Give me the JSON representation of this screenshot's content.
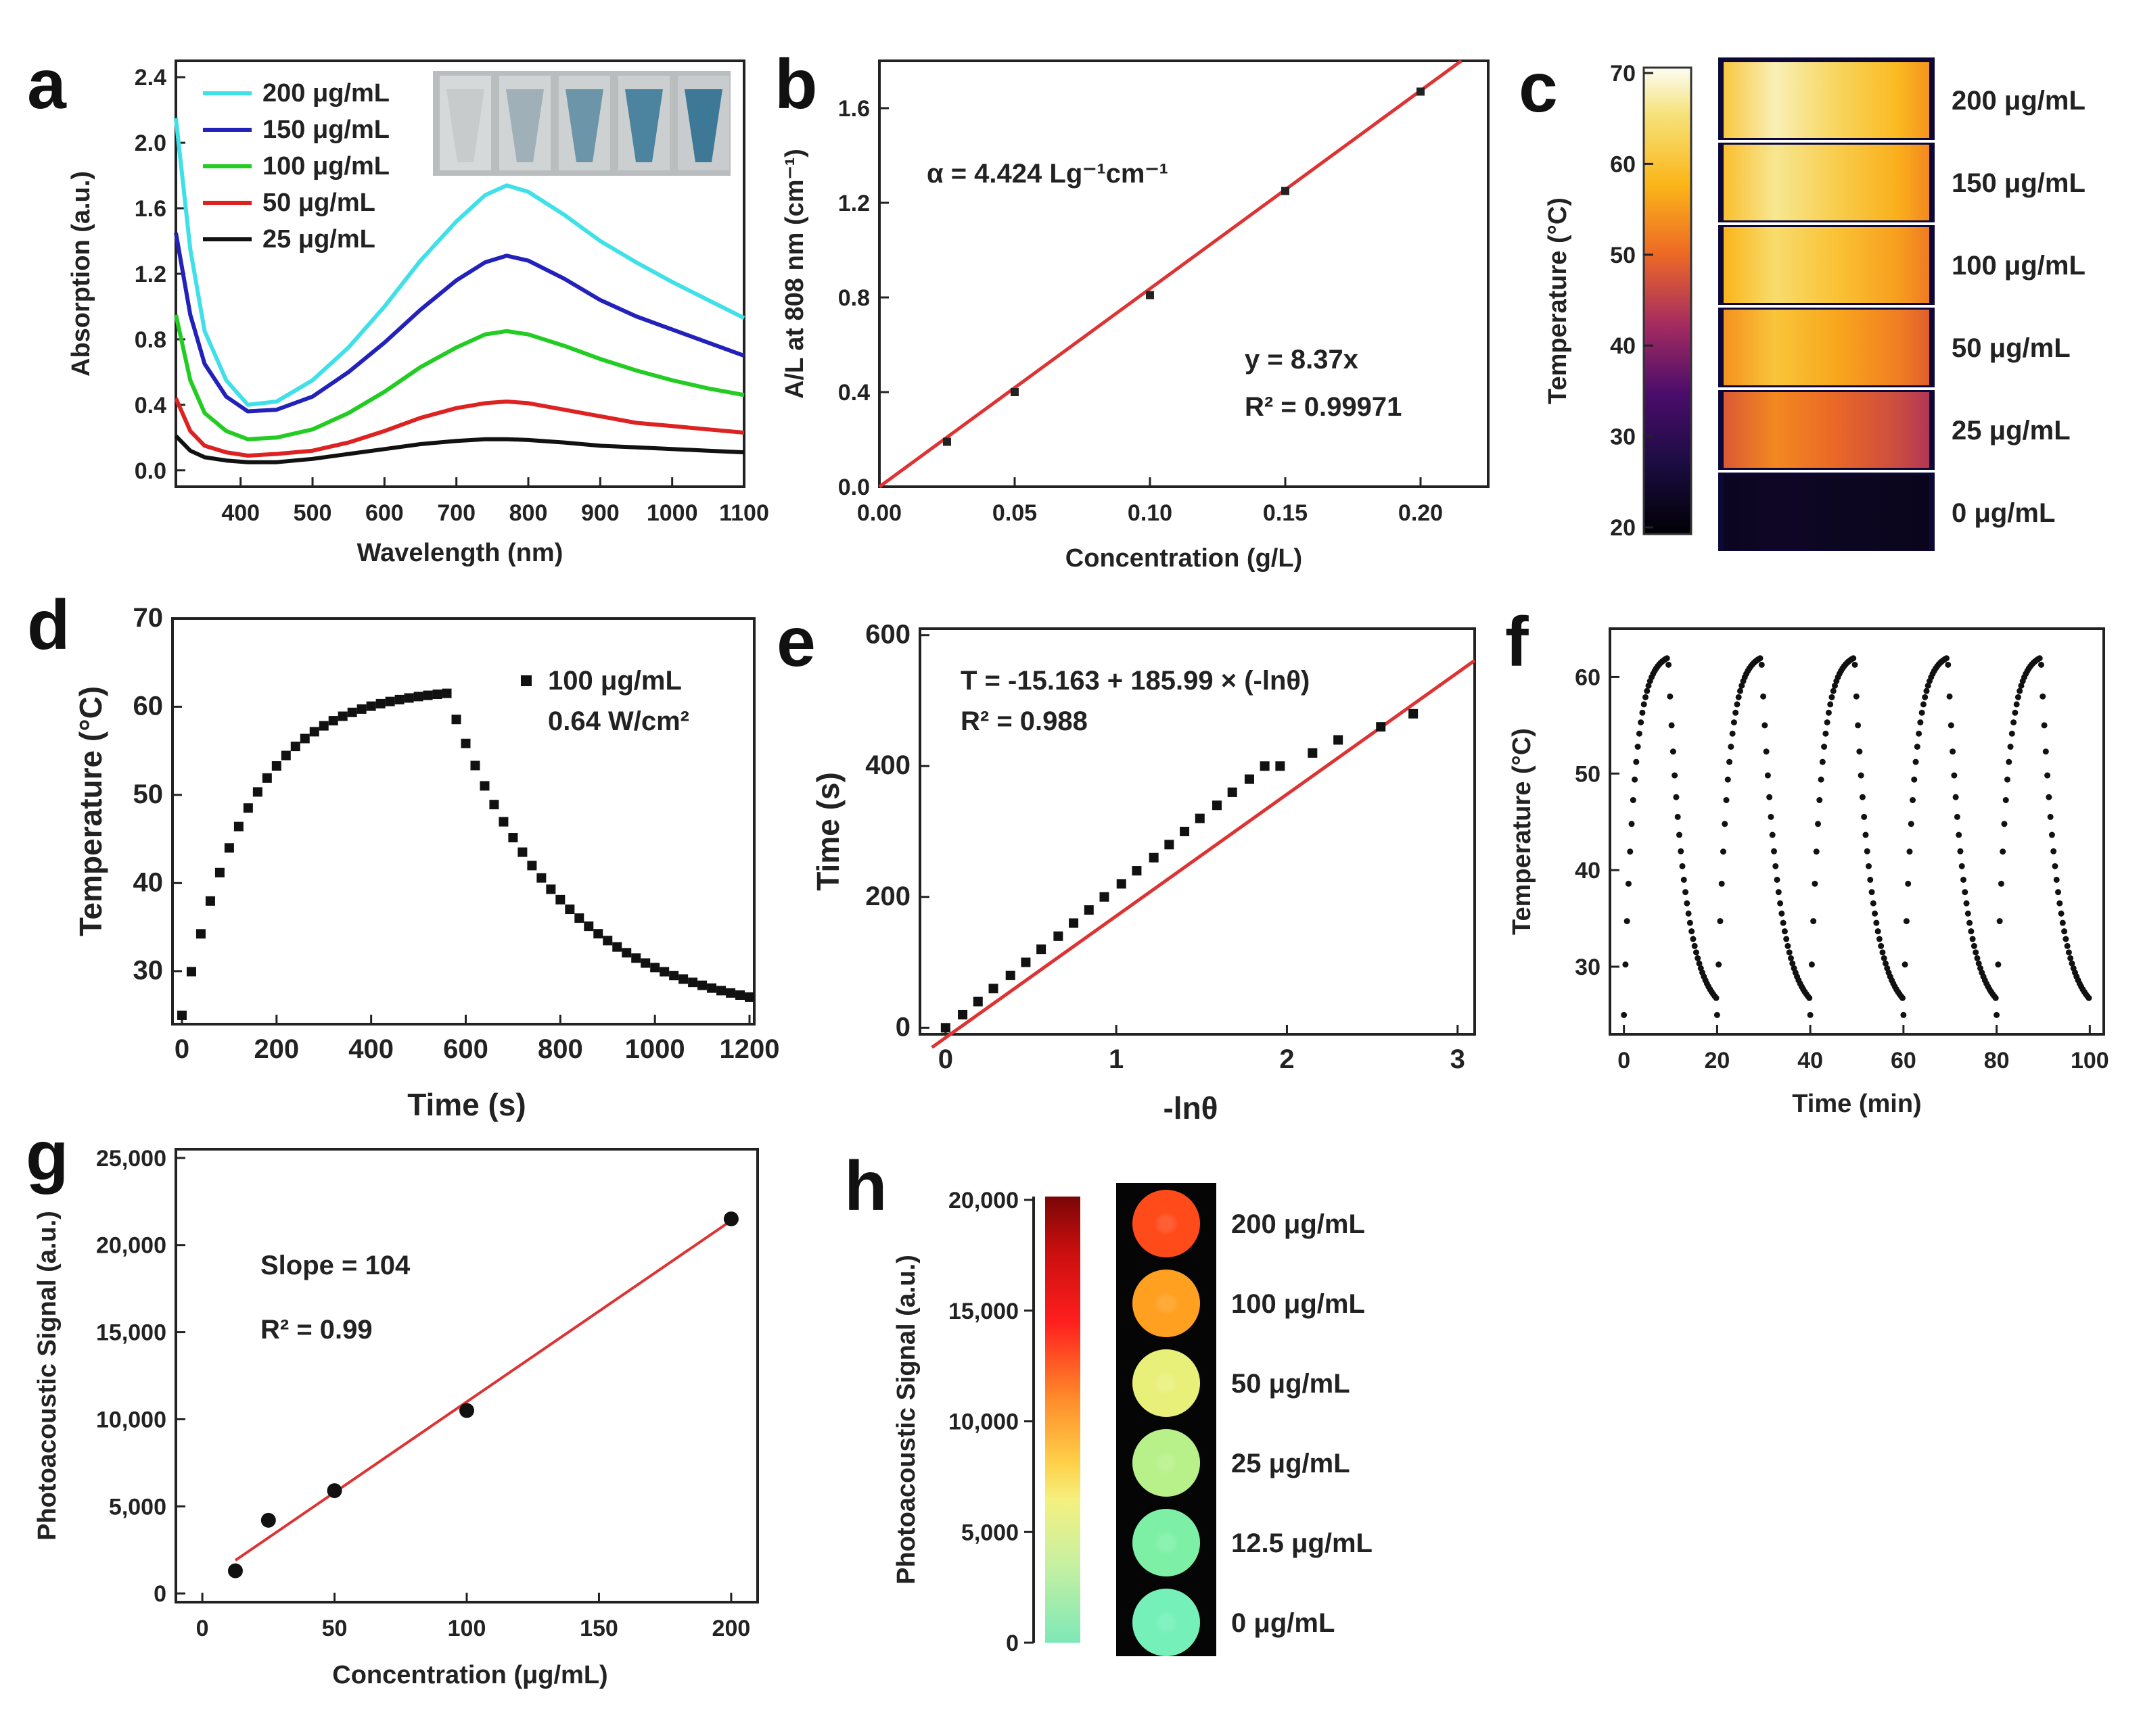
{
  "chart_data": [
    {
      "id": "a",
      "panel_label": "a",
      "type": "line",
      "xlabel": "Wavelength (nm)",
      "ylabel": "Absorption (a.u.)",
      "xlim": [
        310,
        1100
      ],
      "ylim": [
        -0.1,
        2.5
      ],
      "xticks": [
        400,
        500,
        600,
        700,
        800,
        900,
        1000,
        1100
      ],
      "yticks": [
        0.0,
        0.4,
        0.8,
        1.2,
        1.6,
        2.0,
        2.4
      ],
      "series": [
        {
          "name": "200 μg/mL",
          "color": "#40e0e8",
          "x": [
            310,
            330,
            350,
            380,
            410,
            450,
            500,
            550,
            600,
            650,
            700,
            740,
            770,
            800,
            850,
            900,
            950,
            1000,
            1050,
            1100
          ],
          "y": [
            2.15,
            1.35,
            0.85,
            0.55,
            0.4,
            0.42,
            0.55,
            0.75,
            1.0,
            1.28,
            1.52,
            1.68,
            1.74,
            1.7,
            1.56,
            1.4,
            1.27,
            1.15,
            1.04,
            0.93
          ]
        },
        {
          "name": "150 μg/mL",
          "color": "#2222bb",
          "x": [
            310,
            330,
            350,
            380,
            410,
            450,
            500,
            550,
            600,
            650,
            700,
            740,
            770,
            800,
            850,
            900,
            950,
            1000,
            1050,
            1100
          ],
          "y": [
            1.45,
            0.95,
            0.65,
            0.45,
            0.36,
            0.37,
            0.45,
            0.6,
            0.78,
            0.98,
            1.16,
            1.27,
            1.31,
            1.28,
            1.17,
            1.04,
            0.94,
            0.86,
            0.78,
            0.7
          ]
        },
        {
          "name": "100 μg/mL",
          "color": "#22cc22",
          "x": [
            310,
            330,
            350,
            380,
            410,
            450,
            500,
            550,
            600,
            650,
            700,
            740,
            770,
            800,
            850,
            900,
            950,
            1000,
            1050,
            1100
          ],
          "y": [
            0.95,
            0.55,
            0.35,
            0.24,
            0.19,
            0.2,
            0.25,
            0.35,
            0.48,
            0.63,
            0.75,
            0.83,
            0.85,
            0.83,
            0.76,
            0.68,
            0.61,
            0.55,
            0.5,
            0.46
          ]
        },
        {
          "name": "50 μg/mL",
          "color": "#dd2222",
          "x": [
            310,
            330,
            350,
            380,
            410,
            450,
            500,
            550,
            600,
            650,
            700,
            740,
            770,
            800,
            850,
            900,
            950,
            1000,
            1050,
            1100
          ],
          "y": [
            0.44,
            0.24,
            0.15,
            0.11,
            0.09,
            0.1,
            0.12,
            0.17,
            0.24,
            0.32,
            0.38,
            0.41,
            0.42,
            0.41,
            0.37,
            0.33,
            0.29,
            0.27,
            0.25,
            0.23
          ]
        },
        {
          "name": "25 μg/mL",
          "color": "#111111",
          "x": [
            310,
            330,
            350,
            380,
            410,
            450,
            500,
            550,
            600,
            650,
            700,
            740,
            770,
            800,
            850,
            900,
            950,
            1000,
            1050,
            1100
          ],
          "y": [
            0.21,
            0.12,
            0.08,
            0.06,
            0.05,
            0.05,
            0.07,
            0.1,
            0.13,
            0.16,
            0.18,
            0.19,
            0.19,
            0.185,
            0.17,
            0.15,
            0.14,
            0.13,
            0.12,
            0.11
          ]
        }
      ]
    },
    {
      "id": "b",
      "panel_label": "b",
      "type": "scatter",
      "xlabel": "Concentration (g/L)",
      "ylabel": "A/L at 808 nm (cm⁻¹)",
      "xlim": [
        0.0,
        0.225
      ],
      "ylim": [
        0.0,
        1.8
      ],
      "xticks": [
        0.0,
        0.05,
        0.1,
        0.15,
        0.2
      ],
      "yticks": [
        0.0,
        0.4,
        0.8,
        1.2,
        1.6
      ],
      "x": [
        0.025,
        0.05,
        0.1,
        0.15,
        0.2
      ],
      "y": [
        0.19,
        0.4,
        0.81,
        1.25,
        1.67
      ],
      "fit_slope": 8.37,
      "fit_color": "#dd3333",
      "annotations": {
        "alpha": "α = 4.424 Lg⁻¹cm⁻¹",
        "equation": "y = 8.37x",
        "r2": "R² = 0.99971"
      }
    },
    {
      "id": "c",
      "panel_label": "c",
      "type": "heatmap",
      "colorbar_label": "Temperature (°C)",
      "colorbar_range": [
        20,
        70
      ],
      "colorbar_ticks": [
        20,
        30,
        40,
        50,
        60,
        70
      ],
      "rows": [
        {
          "label": "200 μg/mL",
          "peak": 0.95
        },
        {
          "label": "150 μg/mL",
          "peak": 0.92
        },
        {
          "label": "100 μg/mL",
          "peak": 0.88
        },
        {
          "label": "50 μg/mL",
          "peak": 0.8
        },
        {
          "label": "25 μg/mL",
          "peak": 0.66
        },
        {
          "label": "0 μg/mL",
          "peak": 0.08
        }
      ]
    },
    {
      "id": "d",
      "panel_label": "d",
      "type": "scatter",
      "xlabel": "Time (s)",
      "ylabel": "Temperature (°C)",
      "xlim": [
        -20,
        1210
      ],
      "ylim": [
        24,
        70
      ],
      "xticks": [
        0,
        200,
        400,
        600,
        800,
        1000,
        1200
      ],
      "yticks": [
        30,
        40,
        50,
        60,
        70
      ],
      "legend": {
        "label": "100 μg/mL",
        "power": "0.64 W/cm²"
      },
      "heating": {
        "t_end": 560,
        "T0": 25,
        "Tmax": 62.2,
        "tau": 140
      },
      "cooling": {
        "t_end": 1200,
        "Tinf": 24.5,
        "tau": 240
      },
      "sample_step": 20
    },
    {
      "id": "e",
      "panel_label": "e",
      "type": "scatter",
      "xlabel": "-lnθ",
      "ylabel": "Time (s)",
      "xlim": [
        -0.15,
        3.1
      ],
      "ylim": [
        -10,
        610
      ],
      "xticks": [
        0,
        1,
        2,
        3
      ],
      "yticks": [
        0,
        200,
        400,
        600
      ],
      "x": [
        0.0,
        0.1,
        0.19,
        0.28,
        0.38,
        0.47,
        0.56,
        0.66,
        0.75,
        0.84,
        0.93,
        1.03,
        1.12,
        1.22,
        1.31,
        1.4,
        1.49,
        1.59,
        1.68,
        1.78,
        1.87,
        1.96,
        2.15,
        2.3,
        2.55,
        2.74
      ],
      "y": [
        0,
        20,
        40,
        60,
        80,
        100,
        120,
        140,
        160,
        180,
        200,
        220,
        240,
        260,
        280,
        300,
        320,
        340,
        360,
        380,
        400,
        400,
        420,
        440,
        460,
        480
      ],
      "fit": {
        "intercept": -15.163,
        "slope": 185.99,
        "color": "#dd3333"
      },
      "annotations": {
        "equation": "T = -15.163 + 185.99 × (-lnθ)",
        "r2": "R² = 0.988"
      }
    },
    {
      "id": "f",
      "panel_label": "f",
      "type": "scatter",
      "xlabel": "Time (min)",
      "ylabel": "Temperature (°C)",
      "xlim": [
        -3,
        103
      ],
      "ylim": [
        23,
        65
      ],
      "xticks": [
        0,
        20,
        40,
        60,
        80,
        100
      ],
      "yticks": [
        30,
        40,
        50,
        60
      ],
      "cycles": 5,
      "cycle_period_min": 20,
      "heat_min": 9.5,
      "T0": 25,
      "Tmax": 62.5,
      "T_end_cycle": 25.8,
      "sample_step_min": 0.33
    },
    {
      "id": "g",
      "panel_label": "g",
      "type": "scatter",
      "xlabel": "Concentration (μg/mL)",
      "ylabel": "Photoacoustic Signal (a.u.)",
      "xlim": [
        -10,
        210
      ],
      "ylim": [
        -500,
        25500
      ],
      "xticks": [
        0,
        50,
        100,
        150,
        200
      ],
      "yticks": [
        0,
        5000,
        10000,
        15000,
        20000,
        25000
      ],
      "ytick_labels": [
        "0",
        "5,000",
        "10,000",
        "15,000",
        "20,000",
        "25,000"
      ],
      "x": [
        12.5,
        25,
        50,
        100,
        200
      ],
      "y": [
        1300,
        4200,
        5900,
        10500,
        21500
      ],
      "fit": {
        "x0": 12.5,
        "y0": 1900,
        "x1": 200,
        "y1": 21400,
        "color": "#dd3333"
      },
      "annotations": {
        "slope": "Slope = 104",
        "r2": "R² = 0.99"
      }
    },
    {
      "id": "h",
      "panel_label": "h",
      "type": "heatmap",
      "colorbar_label": "Photoacoustic Signal (a.u.)",
      "colorbar_range": [
        0,
        20000
      ],
      "colorbar_ticks": [
        0,
        5000,
        10000,
        15000,
        20000
      ],
      "colorbar_tick_labels": [
        "0",
        "5,000",
        "10,000",
        "15,000",
        "20,000"
      ],
      "spots": [
        {
          "label": "200 μg/mL",
          "color": "#ff4a1a"
        },
        {
          "label": "100 μg/mL",
          "color": "#ffa020"
        },
        {
          "label": "50 μg/mL",
          "color": "#e8f07a"
        },
        {
          "label": "25 μg/mL",
          "color": "#b8f08a"
        },
        {
          "label": "12.5 μg/mL",
          "color": "#7ef0a6"
        },
        {
          "label": "0 μg/mL",
          "color": "#74f0b8"
        }
      ]
    }
  ]
}
